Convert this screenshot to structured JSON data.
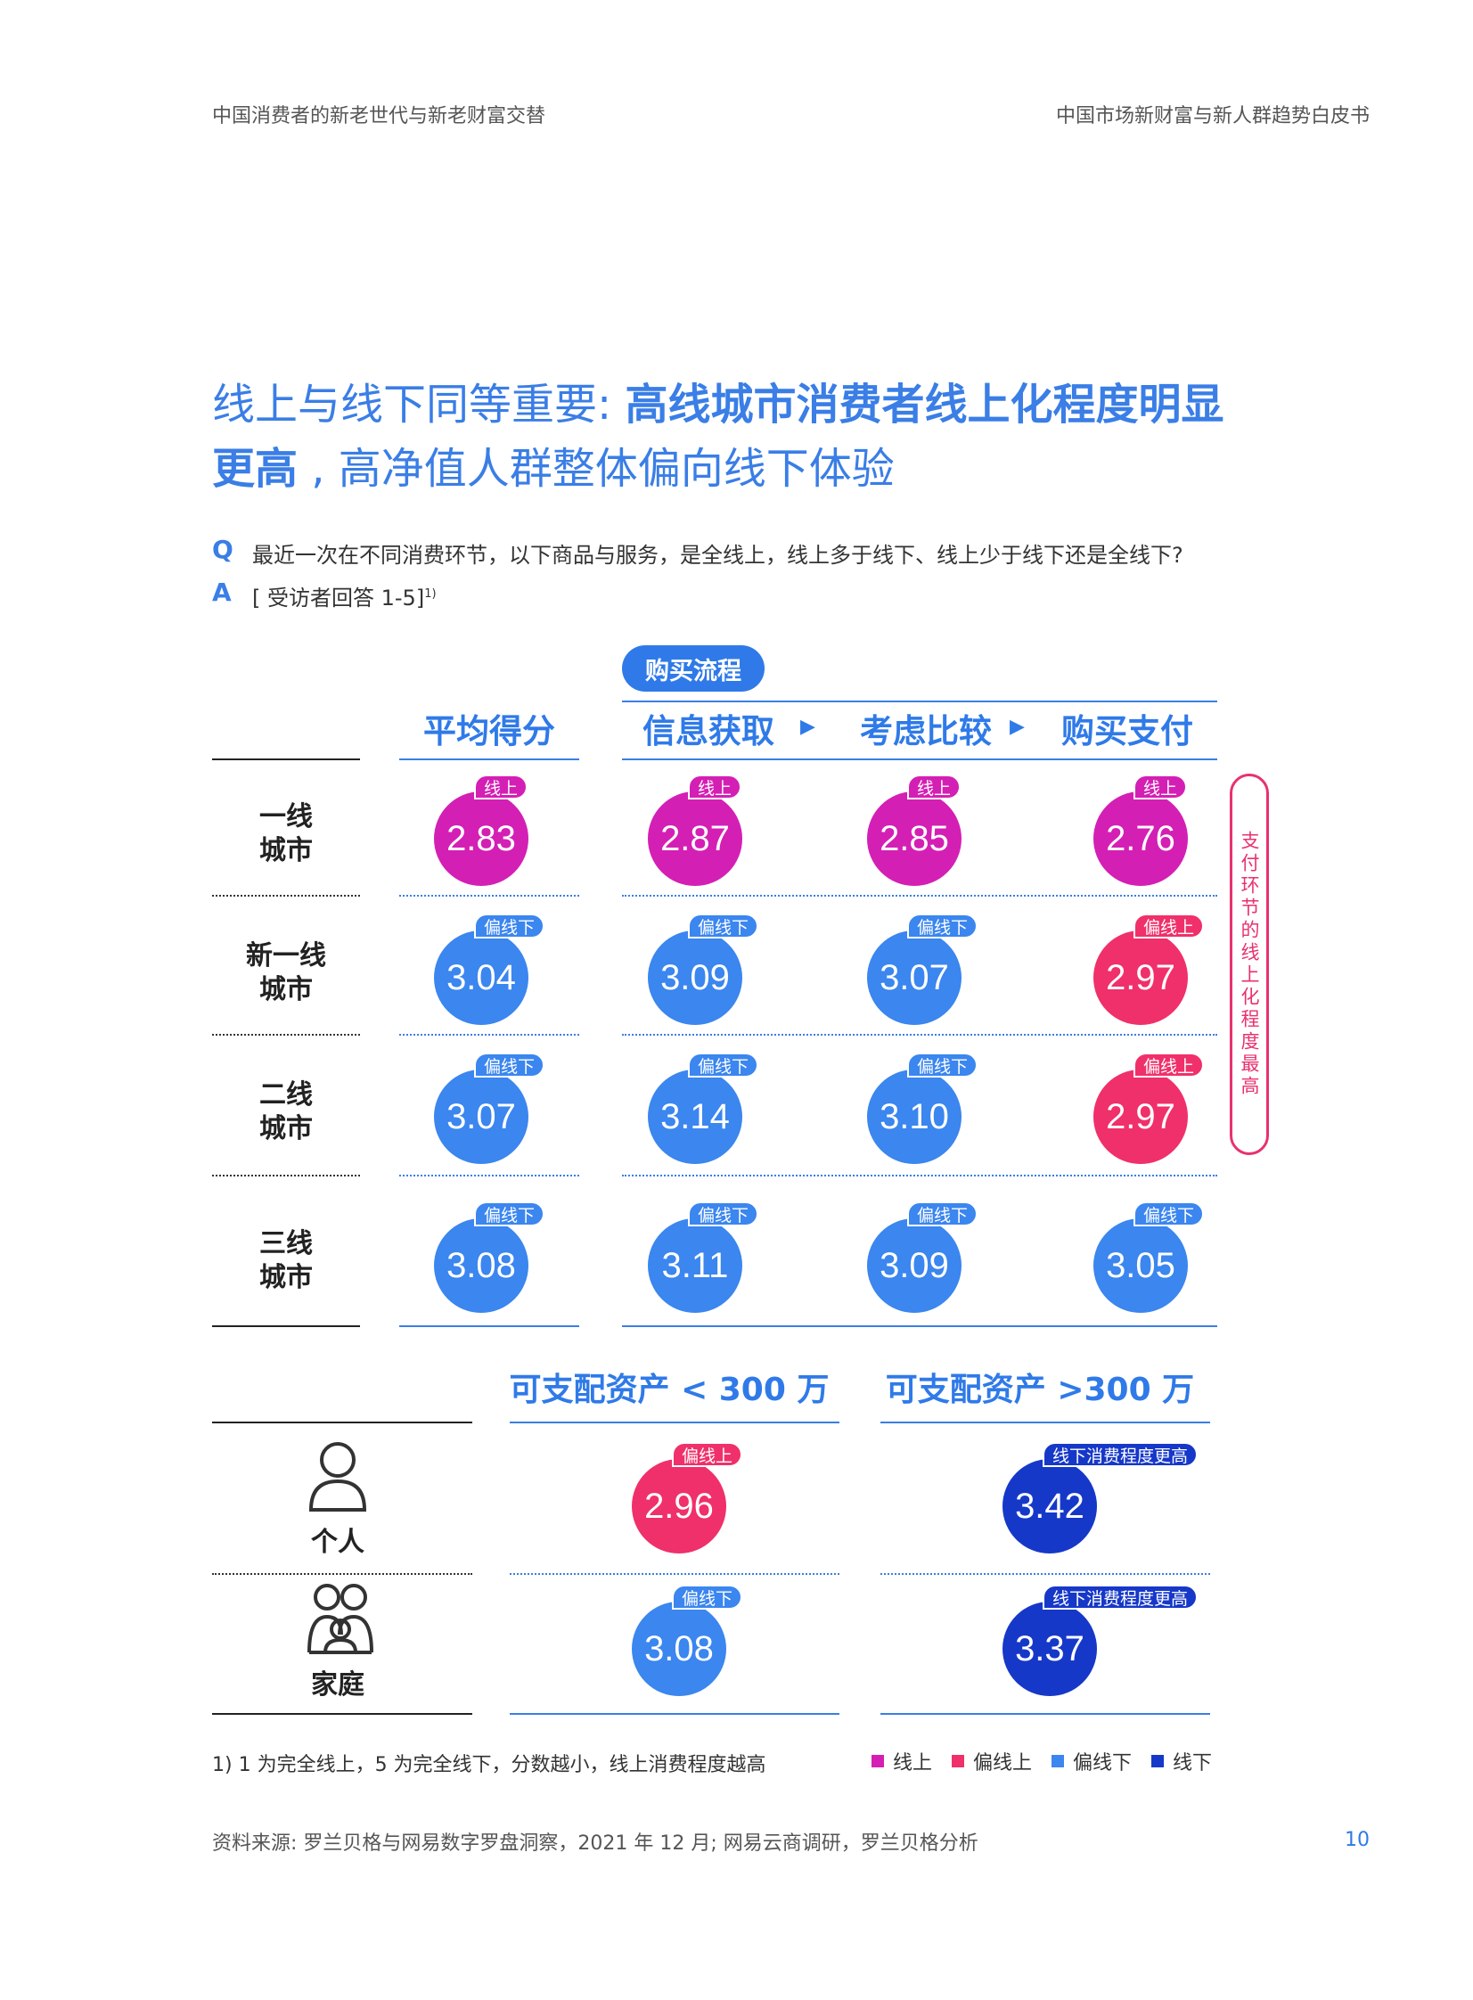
{
  "header": {
    "left": "中国消费者的新老世代与新老财富交替",
    "right": "中国市场新财富与新人群趋势白皮书"
  },
  "title": {
    "part1": "线上与线下同等重要: ",
    "part2": "高线城市消费者线上化程度明显更高",
    "part3": " , 高净值人群整体偏向线下体验"
  },
  "question": {
    "letter": "Q",
    "text": "最近一次在不同消费环节，以下商品与服务，是全线上，线上多于线下、线上少于线下还是全线下?"
  },
  "answer": {
    "letter": "A",
    "text": "[ 受访者回答 1-5]",
    "sup": "1)"
  },
  "purchase_flow_label": "购买流程",
  "columns": [
    "平均得分",
    "信息获取",
    "考虑比较",
    "购买支付"
  ],
  "arrow": "▶",
  "rows": [
    {
      "label_line1": "一线",
      "label_line2": "城市",
      "cells": [
        {
          "value": "2.83",
          "tag": "线上",
          "kind": "online"
        },
        {
          "value": "2.87",
          "tag": "线上",
          "kind": "online"
        },
        {
          "value": "2.85",
          "tag": "线上",
          "kind": "online"
        },
        {
          "value": "2.76",
          "tag": "线上",
          "kind": "online"
        }
      ]
    },
    {
      "label_line1": "新一线",
      "label_line2": "城市",
      "cells": [
        {
          "value": "3.04",
          "tag": "偏线下",
          "kind": "partoffline"
        },
        {
          "value": "3.09",
          "tag": "偏线下",
          "kind": "partoffline"
        },
        {
          "value": "3.07",
          "tag": "偏线下",
          "kind": "partoffline"
        },
        {
          "value": "2.97",
          "tag": "偏线上",
          "kind": "partonline"
        }
      ]
    },
    {
      "label_line1": "二线",
      "label_line2": "城市",
      "cells": [
        {
          "value": "3.07",
          "tag": "偏线下",
          "kind": "partoffline"
        },
        {
          "value": "3.14",
          "tag": "偏线下",
          "kind": "partoffline"
        },
        {
          "value": "3.10",
          "tag": "偏线下",
          "kind": "partoffline"
        },
        {
          "value": "2.97",
          "tag": "偏线上",
          "kind": "partonline"
        }
      ]
    },
    {
      "label_line1": "三线",
      "label_line2": "城市",
      "cells": [
        {
          "value": "3.08",
          "tag": "偏线下",
          "kind": "partoffline"
        },
        {
          "value": "3.11",
          "tag": "偏线下",
          "kind": "partoffline"
        },
        {
          "value": "3.09",
          "tag": "偏线下",
          "kind": "partoffline"
        },
        {
          "value": "3.05",
          "tag": "偏线下",
          "kind": "partoffline"
        }
      ]
    }
  ],
  "side_note": "支付环节的线上化程度最高",
  "assets": {
    "columns": [
      "可支配资产 < 300 万",
      "可支配资产 >300 万"
    ],
    "rows": [
      {
        "label": "个人",
        "icon": "person-icon",
        "cells": [
          {
            "value": "2.96",
            "tag": "偏线上",
            "kind": "partonline"
          },
          {
            "value": "3.42",
            "tag": "线下消费程度更高",
            "kind": "offline"
          }
        ]
      },
      {
        "label": "家庭",
        "icon": "family-icon",
        "cells": [
          {
            "value": "3.08",
            "tag": "偏线下",
            "kind": "partoffline"
          },
          {
            "value": "3.37",
            "tag": "线下消费程度更高",
            "kind": "offline"
          }
        ]
      }
    ]
  },
  "footnote": "1) 1 为完全线上，5 为完全线下，分数越小，线上消费程度越高",
  "legend": [
    {
      "label": "线上",
      "color": "#d41fb4"
    },
    {
      "label": "偏线上",
      "color": "#f0306a"
    },
    {
      "label": "偏线下",
      "color": "#3b86ef"
    },
    {
      "label": "线下",
      "color": "#1638c9"
    }
  ],
  "colors": {
    "online": "#d41fb4",
    "partonline": "#f0306a",
    "partoffline": "#3b86ef",
    "offline": "#1638c9",
    "accent": "#2f7ae8"
  },
  "source": "资料来源: 罗兰贝格与网易数字罗盘洞察，2021 年 12 月; 网易云商调研，罗兰贝格分析",
  "page_number": "10"
}
